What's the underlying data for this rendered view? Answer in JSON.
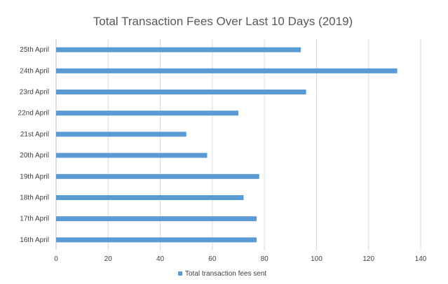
{
  "chart_data": {
    "type": "bar",
    "orientation": "horizontal",
    "title": "Total Transaction Fees Over Last 10 Days (2019)",
    "xlabel": "",
    "ylabel": "",
    "categories": [
      "25th April",
      "24th April",
      "23rd April",
      "22nd April",
      "21st April",
      "20th April",
      "19th April",
      "18th April",
      "17th April",
      "16th April"
    ],
    "series": [
      {
        "name": "Total transaction fees sent",
        "color": "#5b9bd5",
        "values": [
          94,
          131,
          96,
          70,
          50,
          58,
          78,
          72,
          77,
          77
        ]
      }
    ],
    "xlim": [
      0,
      140
    ],
    "xticks": [
      "0",
      "20",
      "40",
      "60",
      "80",
      "100",
      "120",
      "140"
    ],
    "grid": true,
    "legend": "bottom"
  }
}
